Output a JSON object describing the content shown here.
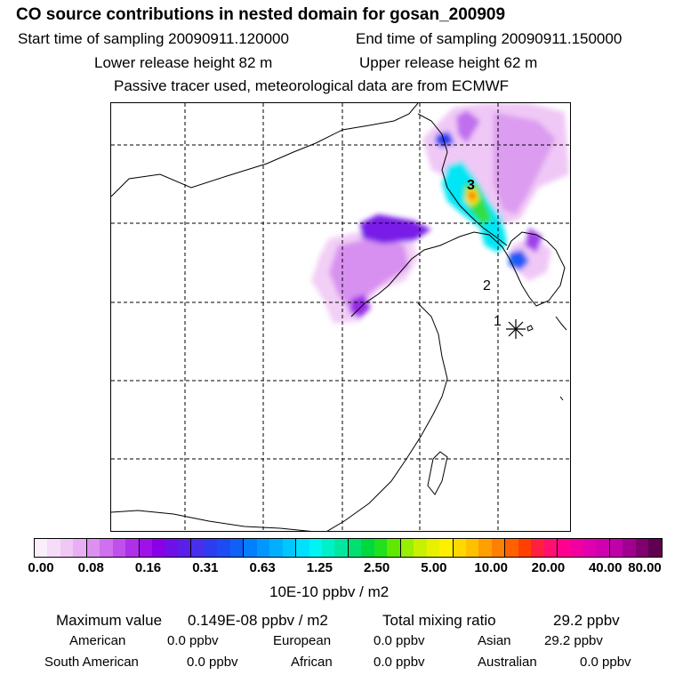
{
  "header": {
    "title": "CO  source contributions in nested domain for gosan_200909",
    "start_time": "Start time of sampling 20090911.120000",
    "end_time": "End time of sampling 20090911.150000",
    "lower_release": "Lower release height   82 m",
    "upper_release": "Upper release height   62 m",
    "tracer_note": "Passive tracer used, meteorological data are from ECMWF"
  },
  "map": {
    "markers": [
      {
        "label": "1",
        "kind": "receptor"
      },
      {
        "label": "2",
        "kind": "label"
      },
      {
        "label": "3",
        "kind": "maximum"
      }
    ]
  },
  "colorbar": {
    "ticks": [
      "0.00",
      "0.08",
      "0.16",
      "0.31",
      "0.63",
      "1.25",
      "2.50",
      "5.00",
      "10.00",
      "20.00",
      "40.00",
      "80.00"
    ],
    "colors": [
      "#fbeefb",
      "#f6dcf8",
      "#f0c8f6",
      "#e8b0f3",
      "#dc90f0",
      "#d070ee",
      "#c050ec",
      "#b030ea",
      "#a010e8",
      "#8a00e6",
      "#7010e8",
      "#5a20ea",
      "#4630ec",
      "#2c3cf0",
      "#1e4cf4",
      "#1060f8",
      "#0080ff",
      "#0098ff",
      "#00b0ff",
      "#00c8ff",
      "#00e0ff",
      "#00f4f4",
      "#00f0c8",
      "#00e8a0",
      "#00e070",
      "#00d840",
      "#20e020",
      "#60e800",
      "#98f000",
      "#c8f000",
      "#e8f000",
      "#fff000",
      "#ffd800",
      "#ffc000",
      "#ffa000",
      "#ff8000",
      "#ff6000",
      "#ff4000",
      "#ff2040",
      "#ff1070",
      "#ff0090",
      "#f000a0",
      "#e000b0",
      "#d000b0",
      "#c000a8",
      "#a00090",
      "#800070",
      "#600050"
    ],
    "unit": "10E-10 ppbv / m2"
  },
  "summary": {
    "max_label": "Maximum value",
    "max_value": "0.149E-08 ppbv / m2",
    "total_label": "Total mixing ratio",
    "total_value": "29.2 ppbv",
    "regions": [
      {
        "name": "American",
        "value": "0.0 ppbv"
      },
      {
        "name": "European",
        "value": "0.0 ppbv"
      },
      {
        "name": "Asian",
        "value": "29.2 ppbv"
      },
      {
        "name": "South American",
        "value": "0.0 ppbv"
      },
      {
        "name": "African",
        "value": "0.0 ppbv"
      },
      {
        "name": "Australian",
        "value": "0.0 ppbv"
      }
    ]
  }
}
